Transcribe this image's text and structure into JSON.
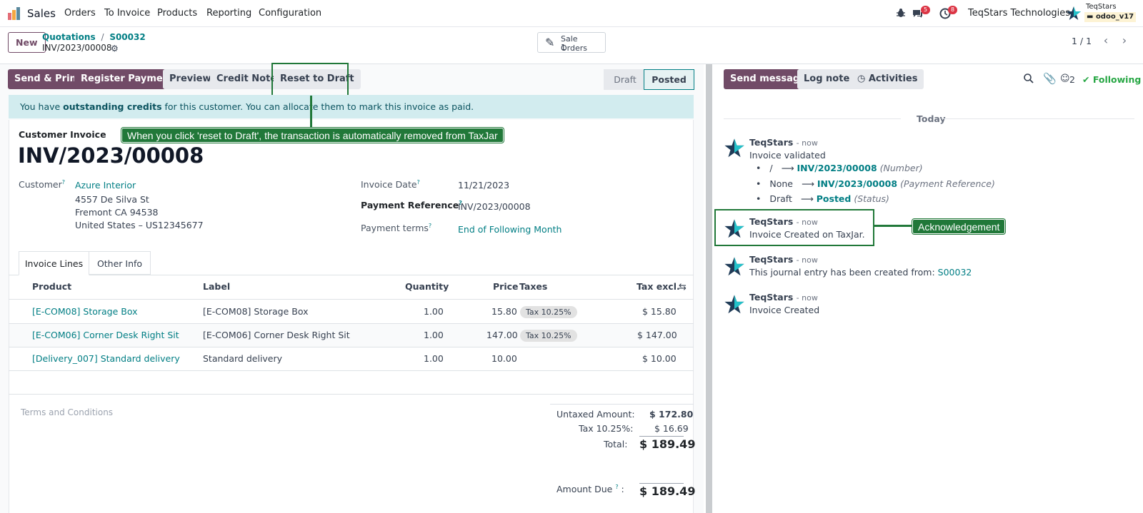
{
  "app": {
    "name": "Sales",
    "logo_icon": "odoo-apps-icon"
  },
  "menu": [
    "Orders",
    "To Invoice",
    "Products",
    "Reporting",
    "Configuration"
  ],
  "systray": {
    "messages_count": "5",
    "activities_count": "8",
    "company": "TeqStars Technologies",
    "user_name": "TeqStars",
    "db_name": "odoo_v17"
  },
  "control_panel": {
    "new_label": "New",
    "breadcrumb": [
      "Quotations",
      "S00032"
    ],
    "record_name": "INV/2023/00008",
    "smart_button": {
      "label": "Sale Orders",
      "count": "1"
    },
    "pager": "1 / 1"
  },
  "actions": {
    "send_print": "Send & Print",
    "register_payment": "Register Payment",
    "preview": "Preview",
    "credit_note": "Credit Note",
    "reset_to_draft": "Reset to Draft"
  },
  "statusbar": {
    "draft": "Draft",
    "posted": "Posted",
    "active": "Posted"
  },
  "banner": {
    "prefix": "You have ",
    "bold": "outstanding credits",
    "suffix": " for this customer. You can allocate them to mark this invoice as paid."
  },
  "annotations": {
    "reset_tooltip": "When you click 'reset to Draft', the transaction is automatically removed from TaxJar",
    "ack_tooltip": "Acknowledgement"
  },
  "invoice": {
    "type_label": "Customer Invoice",
    "number": "INV/2023/00008",
    "customer_label": "Customer",
    "customer_name": "Azure Interior",
    "address": [
      "4557 De Silva St",
      "Fremont CA 94538",
      "United States – US12345677"
    ],
    "invoice_date_label": "Invoice Date",
    "invoice_date": "11/21/2023",
    "payment_ref_label": "Payment Reference",
    "payment_ref": "INV/2023/00008",
    "payment_terms_label": "Payment terms",
    "payment_terms": "End of Following Month",
    "help_mark": "?"
  },
  "tabs": [
    "Invoice Lines",
    "Other Info"
  ],
  "lines": {
    "headers": {
      "product": "Product",
      "label": "Label",
      "quantity": "Quantity",
      "price": "Price",
      "taxes": "Taxes",
      "tax_excl": "Tax excl."
    },
    "rows": [
      {
        "product": "[E-COM08] Storage Box",
        "label": "[E-COM08] Storage Box",
        "quantity": "1.00",
        "price": "15.80",
        "tax": "Tax 10.25%",
        "subtotal": "$ 15.80"
      },
      {
        "product": "[E-COM06] Corner Desk Right Sit",
        "label": "[E-COM06] Corner Desk Right Sit",
        "quantity": "1.00",
        "price": "147.00",
        "tax": "Tax 10.25%",
        "subtotal": "$ 147.00"
      },
      {
        "product": "[Delivery_007] Standard delivery",
        "label": "Standard delivery",
        "quantity": "1.00",
        "price": "10.00",
        "tax": "",
        "subtotal": "$ 10.00"
      }
    ]
  },
  "terms_placeholder": "Terms and Conditions",
  "totals": {
    "untaxed_label": "Untaxed Amount:",
    "untaxed": "$ 172.80",
    "tax_label": "Tax 10.25%:",
    "tax": "$ 16.69",
    "total_label": "Total:",
    "total": "$ 189.49",
    "due_label": "Amount Due",
    "due": "$ 189.49"
  },
  "chatter": {
    "send_message": "Send message",
    "log_note": "Log note",
    "activities": "Activities",
    "followers_count": "2",
    "following": "Following",
    "date_separator": "Today",
    "messages": [
      {
        "author": "TeqStars",
        "time": "- now",
        "body": "Invoice validated",
        "tracking": [
          {
            "old": "/",
            "new": "INV/2023/00008",
            "field": "(Number)"
          },
          {
            "old": "None",
            "new": "INV/2023/00008",
            "field": "(Payment Reference)"
          },
          {
            "old": "Draft",
            "new": "Posted",
            "field": "(Status)"
          }
        ]
      },
      {
        "author": "TeqStars",
        "time": "- now",
        "body": "Invoice Created on TaxJar."
      },
      {
        "author": "TeqStars",
        "time": "- now",
        "body": "This journal entry has been created from: ",
        "link": "S00032"
      },
      {
        "author": "TeqStars",
        "time": "- now",
        "body": "Invoice Created"
      }
    ]
  },
  "colors": {
    "primary": "#714b67",
    "link": "#017e84",
    "annotation": "#217839",
    "banner": "#d2ecef"
  }
}
